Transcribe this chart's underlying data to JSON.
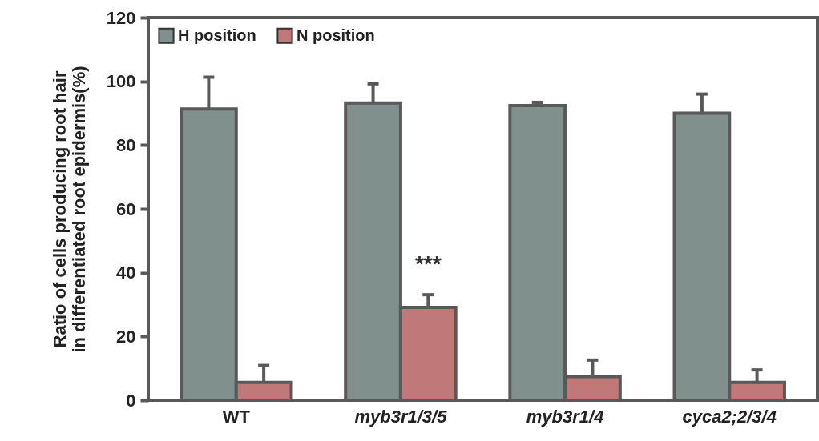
{
  "chart_data": {
    "type": "bar",
    "ylabel": "Ratio of cells producing root hair\nin differentiated root epidermis(%)",
    "categories": [
      "WT",
      "myb3r1/3/5",
      "myb3r1/4",
      "cyca2;2/3/4"
    ],
    "series": [
      {
        "name": "H position",
        "color": "#7f908d",
        "values": [
          91.3,
          93.2,
          92.4,
          90.0
        ],
        "errors": [
          10,
          6,
          1,
          6
        ]
      },
      {
        "name": "N position",
        "color": "#c07878",
        "values": [
          5.6,
          29.1,
          7.4,
          5.6
        ],
        "errors": [
          5.3,
          4,
          5.2,
          3.9
        ]
      }
    ],
    "ylim": [
      0,
      120
    ],
    "yticks": [
      0,
      20,
      40,
      60,
      80,
      100,
      120
    ],
    "legend": "top left",
    "annotations": [
      {
        "text": "***",
        "x": "myb3r1/3/5",
        "y": 39
      }
    ]
  }
}
